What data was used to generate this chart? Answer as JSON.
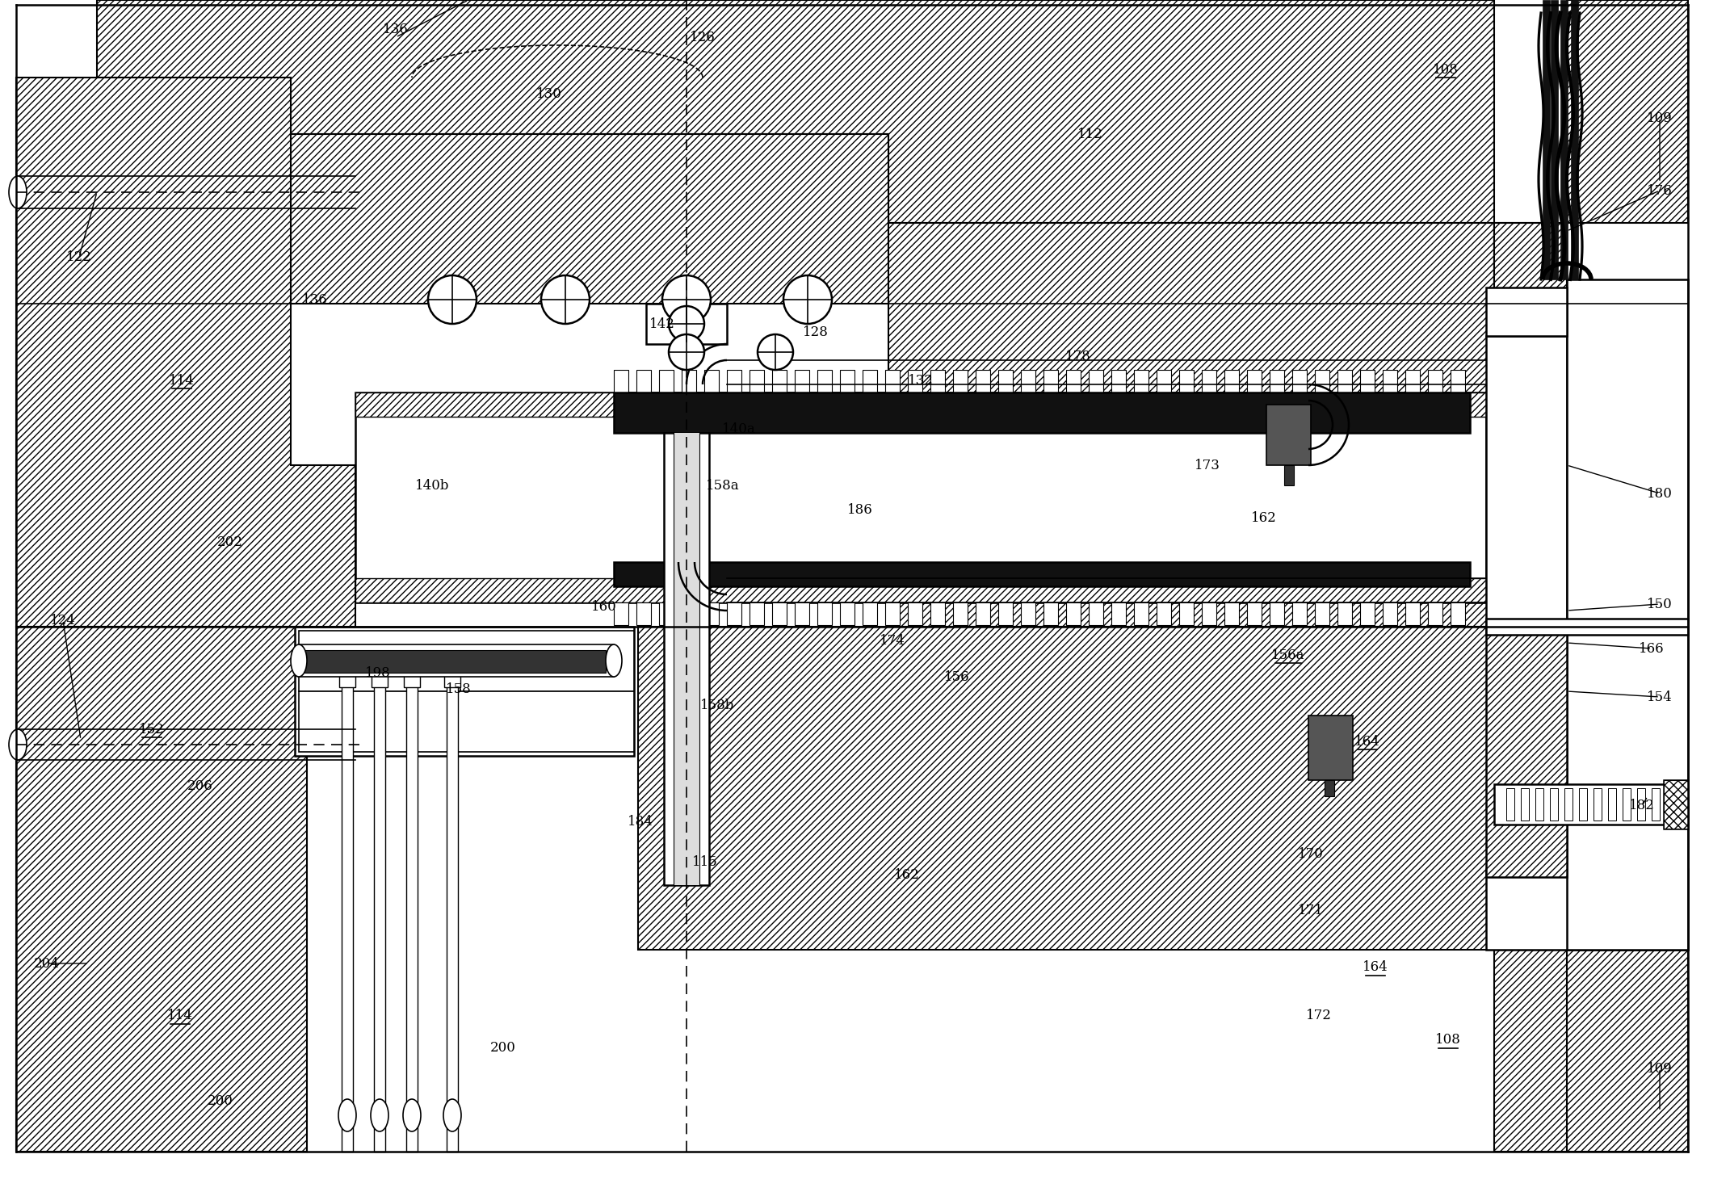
{
  "bg_color": "#ffffff",
  "line_color": "#000000",
  "figsize": [
    21.16,
    14.76
  ],
  "dpi": 100,
  "labels": [
    [
      "136",
      490,
      1440,
      false
    ],
    [
      "130",
      680,
      1360,
      false
    ],
    [
      "126",
      870,
      1430,
      false
    ],
    [
      "108",
      1790,
      1390,
      true
    ],
    [
      "109",
      2055,
      1330,
      false
    ],
    [
      "112",
      1350,
      1310,
      false
    ],
    [
      "176",
      2055,
      1240,
      false
    ],
    [
      "136",
      390,
      1105,
      false
    ],
    [
      "142",
      820,
      1075,
      false
    ],
    [
      "128",
      1010,
      1065,
      false
    ],
    [
      "132",
      1140,
      1005,
      false
    ],
    [
      "140a",
      915,
      945,
      false
    ],
    [
      "114",
      225,
      1005,
      true
    ],
    [
      "140b",
      535,
      875,
      false
    ],
    [
      "158a",
      895,
      875,
      false
    ],
    [
      "186",
      1065,
      845,
      false
    ],
    [
      "178",
      1335,
      1035,
      false
    ],
    [
      "173",
      1495,
      900,
      false
    ],
    [
      "162",
      1565,
      835,
      false
    ],
    [
      "180",
      2055,
      865,
      false
    ],
    [
      "202",
      285,
      805,
      false
    ],
    [
      "124",
      78,
      708,
      false
    ],
    [
      "150",
      2055,
      728,
      false
    ],
    [
      "160",
      748,
      725,
      false
    ],
    [
      "174",
      1105,
      683,
      false
    ],
    [
      "156a",
      1595,
      665,
      true
    ],
    [
      "166",
      2045,
      673,
      false
    ],
    [
      "156",
      1185,
      638,
      false
    ],
    [
      "154",
      2055,
      613,
      false
    ],
    [
      "198",
      468,
      643,
      false
    ],
    [
      "158",
      568,
      623,
      false
    ],
    [
      "158b",
      888,
      603,
      false
    ],
    [
      "152",
      188,
      573,
      true
    ],
    [
      "164",
      1693,
      558,
      true
    ],
    [
      "206",
      248,
      503,
      false
    ],
    [
      "184",
      793,
      458,
      false
    ],
    [
      "115",
      873,
      408,
      false
    ],
    [
      "162",
      1123,
      393,
      false
    ],
    [
      "170",
      1623,
      418,
      false
    ],
    [
      "164",
      1703,
      278,
      true
    ],
    [
      "171",
      1623,
      348,
      false
    ],
    [
      "204",
      58,
      283,
      false
    ],
    [
      "114",
      223,
      218,
      true
    ],
    [
      "200",
      623,
      178,
      false
    ],
    [
      "172",
      1633,
      218,
      false
    ],
    [
      "108",
      1793,
      188,
      true
    ],
    [
      "109",
      2055,
      153,
      false
    ],
    [
      "200",
      273,
      113,
      false
    ],
    [
      "182",
      2033,
      478,
      false
    ],
    [
      "122",
      98,
      1158,
      false
    ]
  ]
}
